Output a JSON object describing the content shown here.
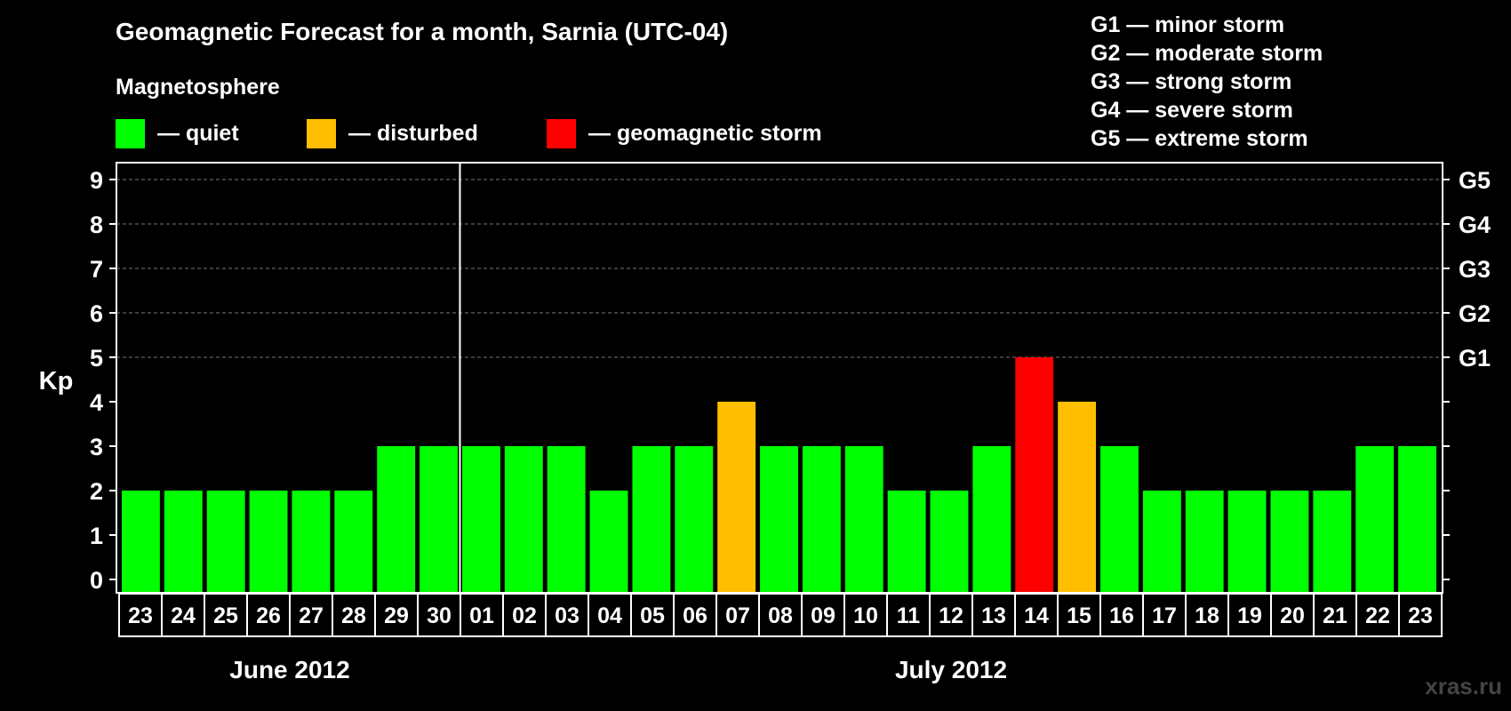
{
  "header": {
    "title": "Geomagnetic Forecast for a month, Sarnia (UTC-04)",
    "magnetosphere_label": "Magnetosphere"
  },
  "legend": [
    {
      "label": "— quiet",
      "color": "#00ff00"
    },
    {
      "label": "— disturbed",
      "color": "#ffbf00"
    },
    {
      "label": "— geomagnetic storm",
      "color": "#ff0000"
    }
  ],
  "g_scale": [
    "G1 — minor storm",
    "G2 — moderate storm",
    "G3 — strong storm",
    "G4 — severe storm",
    "G5 — extreme storm"
  ],
  "watermark": "xras.ru",
  "colors": {
    "quiet": "#00ff00",
    "disturbed": "#ffbf00",
    "storm": "#ff0000"
  },
  "chart_data": {
    "type": "bar",
    "title": "Geomagnetic Forecast for a month, Sarnia (UTC-04)",
    "ylabel": "Kp",
    "ylim": [
      0,
      9
    ],
    "yticks": [
      0,
      1,
      2,
      3,
      4,
      5,
      6,
      7,
      8,
      9
    ],
    "right_axis_labels": [
      {
        "kp": 5,
        "label": "G1"
      },
      {
        "kp": 6,
        "label": "G2"
      },
      {
        "kp": 7,
        "label": "G3"
      },
      {
        "kp": 8,
        "label": "G4"
      },
      {
        "kp": 9,
        "label": "G5"
      }
    ],
    "grid": true,
    "categories": [
      "23",
      "24",
      "25",
      "26",
      "27",
      "28",
      "29",
      "30",
      "01",
      "02",
      "03",
      "04",
      "05",
      "06",
      "07",
      "08",
      "09",
      "10",
      "11",
      "12",
      "13",
      "14",
      "15",
      "16",
      "17",
      "18",
      "19",
      "20",
      "21",
      "22",
      "23"
    ],
    "values": [
      2,
      2,
      2,
      2,
      2,
      2,
      3,
      3,
      3,
      3,
      3,
      2,
      3,
      3,
      4,
      3,
      3,
      3,
      2,
      2,
      3,
      5,
      4,
      3,
      2,
      2,
      2,
      2,
      2,
      3,
      3
    ],
    "level": [
      "quiet",
      "quiet",
      "quiet",
      "quiet",
      "quiet",
      "quiet",
      "quiet",
      "quiet",
      "quiet",
      "quiet",
      "quiet",
      "quiet",
      "quiet",
      "quiet",
      "disturbed",
      "quiet",
      "quiet",
      "quiet",
      "quiet",
      "quiet",
      "quiet",
      "storm",
      "disturbed",
      "quiet",
      "quiet",
      "quiet",
      "quiet",
      "quiet",
      "quiet",
      "quiet",
      "quiet"
    ],
    "months": [
      {
        "label": "June 2012",
        "start": 0,
        "end": 7
      },
      {
        "label": "July 2012",
        "start": 8,
        "end": 30
      }
    ]
  }
}
